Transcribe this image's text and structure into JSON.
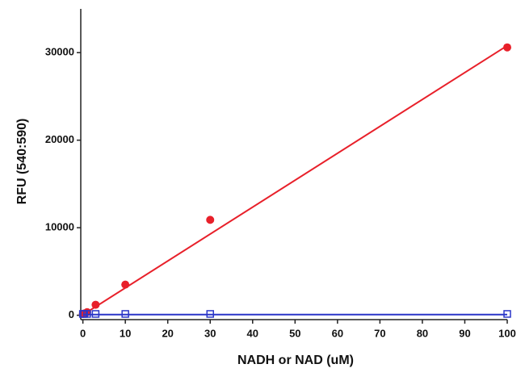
{
  "chart_data": {
    "type": "scatter",
    "x_label": "NADH or NAD (uM)",
    "y_label": "RFU (540:590)",
    "xlim": [
      -0.5,
      100
    ],
    "xticks": [
      0,
      10,
      20,
      30,
      40,
      50,
      60,
      70,
      80,
      90,
      100
    ],
    "ylim": [
      -500,
      35000
    ],
    "yticks": [
      0,
      10000,
      20000,
      30000
    ],
    "grid": false,
    "series": [
      {
        "color": "#e8202a",
        "marker": "circle",
        "x": [
          0,
          0.3,
          1,
          3,
          10,
          30,
          100
        ],
        "values": [
          150,
          200,
          350,
          1200,
          3500,
          10900,
          30600
        ]
      },
      {
        "color": "#e8202a",
        "marker": "line",
        "x": [
          0,
          100
        ],
        "values": [
          50,
          30800
        ]
      },
      {
        "color": "#2a36c8",
        "marker": "square",
        "x": [
          0,
          0.3,
          1,
          3,
          10,
          30,
          100
        ],
        "values": [
          150,
          150,
          150,
          150,
          150,
          150,
          150
        ]
      },
      {
        "color": "#2a36c8",
        "marker": "line",
        "x": [
          0,
          100
        ],
        "values": [
          80,
          80
        ]
      }
    ]
  }
}
